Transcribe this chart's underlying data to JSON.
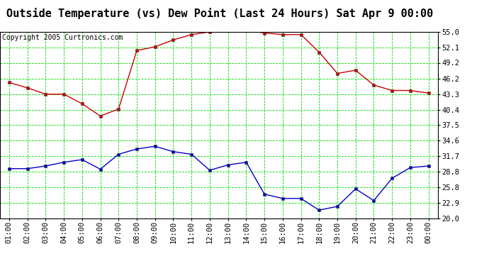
{
  "title": "Outside Temperature (vs) Dew Point (Last 24 Hours) Sat Apr 9 00:00",
  "copyright": "Copyright 2005 Curtronics.com",
  "x_labels": [
    "01:00",
    "02:00",
    "03:00",
    "04:00",
    "05:00",
    "06:00",
    "07:00",
    "08:00",
    "09:00",
    "10:00",
    "11:00",
    "12:00",
    "13:00",
    "14:00",
    "15:00",
    "16:00",
    "17:00",
    "18:00",
    "19:00",
    "20:00",
    "21:00",
    "22:00",
    "23:00",
    "00:00"
  ],
  "temp_red": [
    45.5,
    44.5,
    43.3,
    43.3,
    41.5,
    39.2,
    40.5,
    51.5,
    52.2,
    53.5,
    54.5,
    55.0,
    55.3,
    55.3,
    54.8,
    54.5,
    54.5,
    51.2,
    47.2,
    47.8,
    45.0,
    44.0,
    44.0,
    43.5
  ],
  "dew_blue": [
    29.3,
    29.3,
    29.8,
    30.5,
    31.0,
    29.2,
    32.0,
    33.0,
    33.5,
    32.5,
    32.0,
    29.0,
    30.0,
    30.5,
    24.5,
    23.7,
    23.7,
    21.5,
    22.2,
    25.5,
    23.3,
    27.5,
    29.5,
    29.8
  ],
  "ylim_min": 20.0,
  "ylim_max": 55.0,
  "yticks": [
    20.0,
    22.9,
    25.8,
    28.8,
    31.7,
    34.6,
    37.5,
    40.4,
    43.3,
    46.2,
    49.2,
    52.1,
    55.0
  ],
  "bg_color": "#ffffff",
  "plot_bg": "#ffffff",
  "grid_color": "#00dd00",
  "red_color": "#cc0000",
  "blue_color": "#0000cc",
  "title_fontsize": 11,
  "tick_fontsize": 7.5,
  "copyright_fontsize": 7
}
